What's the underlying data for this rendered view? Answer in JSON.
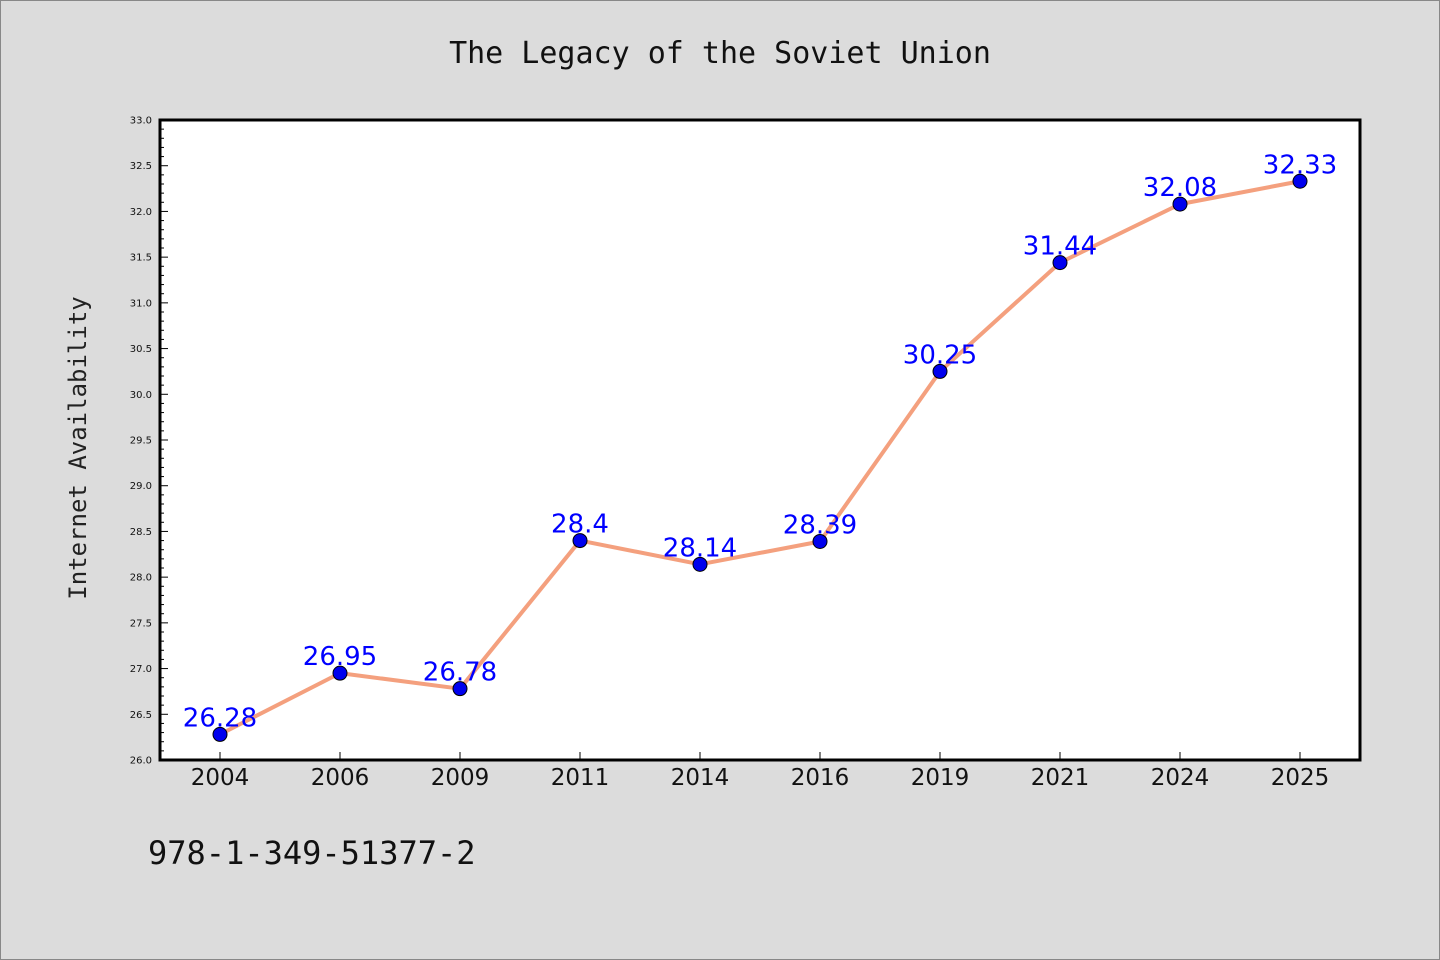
{
  "chart_data": {
    "type": "line",
    "title": "The Legacy of the Soviet Union",
    "xlabel": "",
    "ylabel": "Internet Availability",
    "categories": [
      "2004",
      "2006",
      "2009",
      "2011",
      "2014",
      "2016",
      "2019",
      "2021",
      "2024",
      "2025"
    ],
    "series": [
      {
        "values": [
          26.28,
          26.95,
          26.78,
          28.4,
          28.14,
          28.39,
          30.25,
          31.44,
          32.08,
          32.33
        ],
        "data_labels": [
          "26.28",
          "26.95",
          "26.78",
          "28.4",
          "28.14",
          "28.39",
          "30.25",
          "31.44",
          "32.08",
          "32.33"
        ]
      }
    ],
    "ylim": [
      26.0,
      33.0
    ],
    "yticks": [
      "26.0",
      "26.5",
      "27.0",
      "27.5",
      "28.0",
      "28.5",
      "29.0",
      "29.5",
      "30.0",
      "30.5",
      "31.0",
      "31.5",
      "32.0",
      "32.5",
      "33.0"
    ],
    "grid": false,
    "legend": "none"
  },
  "footer_code": "978-1-349-51377-2",
  "colors": {
    "background": "#dcdcdc",
    "plot_area": "#ffffff",
    "line": "#f4a07e",
    "marker": "#0000ee",
    "data_label": "#0000ff"
  }
}
